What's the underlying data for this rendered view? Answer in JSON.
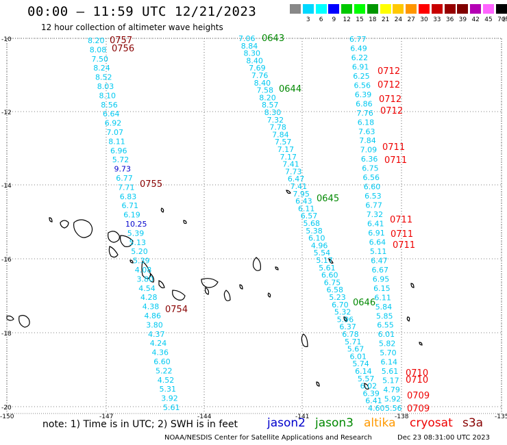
{
  "header": {
    "title": "00:00 – 11:59 UTC 12/21/2023",
    "subtitle": "12 hour collection of altimeter wave heights"
  },
  "legend": {
    "unit": "(ft)",
    "bins": [
      {
        "label": "",
        "color": "#888888"
      },
      {
        "label": "3",
        "color": "#00d8ff"
      },
      {
        "label": "6",
        "color": "#00ffff"
      },
      {
        "label": "9",
        "color": "#0000ff"
      },
      {
        "label": "12",
        "color": "#00c800"
      },
      {
        "label": "15",
        "color": "#00ff00"
      },
      {
        "label": "18",
        "color": "#009600"
      },
      {
        "label": "21",
        "color": "#ffff00"
      },
      {
        "label": "24",
        "color": "#ffc800"
      },
      {
        "label": "27",
        "color": "#ff9600"
      },
      {
        "label": "30",
        "color": "#ff0000"
      },
      {
        "label": "33",
        "color": "#c80000"
      },
      {
        "label": "36",
        "color": "#960000"
      },
      {
        "label": "39",
        "color": "#800000"
      },
      {
        "label": "42",
        "color": "#b400b4"
      },
      {
        "label": "45",
        "color": "#ff64ff"
      },
      {
        "label": "70",
        "color": "#000000"
      }
    ]
  },
  "axes": {
    "lat_labels": [
      "-10",
      "-12",
      "-14",
      "-16",
      "-18",
      "-20"
    ],
    "lon_labels": [
      "-150",
      "-147",
      "-144",
      "-141",
      "-138",
      "-135"
    ]
  },
  "tracks": {
    "track_a": [
      "8.20",
      "8.08",
      "7.50",
      "8.24",
      "8.52",
      "8.03",
      "8.10",
      "8.56",
      "6.64",
      "6.92",
      "7.07",
      "8.11",
      "6.96",
      "5.72",
      "9.73",
      "6.77",
      "7.71",
      "6.83",
      "6.71",
      "6.19",
      "10.25",
      "5.39",
      "5.13",
      "5.20",
      "5.39",
      "4.08",
      "3.80",
      "4.54",
      "4.28",
      "4.38",
      "4.86",
      "3.80",
      "4.37",
      "4.24",
      "4.36",
      "6.60",
      "5.22",
      "4.52",
      "5.31",
      "3.92",
      "5.61"
    ],
    "track_b": [
      "7.06",
      "8.84",
      "8.30",
      "8.40",
      "7.69",
      "7.76",
      "8.40",
      "7.58",
      "8.20",
      "8.57",
      "8.30",
      "7.32",
      "7.78",
      "7.84",
      "7.57",
      "7.17",
      "7.17",
      "7.41",
      "7.73",
      "6.47",
      "7.41",
      "7.95",
      "6.43",
      "6.11",
      "6.57",
      "5.68",
      "5.38",
      "6.10",
      "4.96",
      "5.54",
      "5.17",
      "5.61",
      "6.60",
      "6.75",
      "6.58",
      "5.23",
      "6.70",
      "5.32",
      "5.96",
      "6.37",
      "6.78",
      "5.71",
      "5.67",
      "6.01",
      "5.74",
      "6.14",
      "5.57",
      "6.02",
      "6.39",
      "6.41",
      "4.60"
    ],
    "track_c": [
      "6.77",
      "6.49",
      "6.22",
      "6.91",
      "6.25",
      "6.56",
      "6.39",
      "6.86",
      "7.76",
      "6.18",
      "7.63",
      "7.84",
      "7.09",
      "6.36",
      "6.75",
      "6.56",
      "6.60",
      "6.53",
      "6.77",
      "7.32",
      "6.41",
      "6.91",
      "6.64",
      "5.11",
      "6.47",
      "6.67",
      "6.95",
      "6.15",
      "6.11",
      "5.84",
      "5.85",
      "6.55",
      "6.01",
      "5.82",
      "5.70",
      "6.14",
      "5.61",
      "5.17",
      "4.79",
      "5.92",
      "5.56"
    ],
    "time_labels": {
      "track_a": [
        "0757",
        "0756",
        "0755",
        "0754"
      ],
      "track_b": [
        "0643",
        "0644",
        "0645",
        "0646"
      ],
      "track_c": [
        "0712",
        "0712",
        "0712",
        "0712",
        "0711",
        "0711",
        "0711",
        "0711",
        "0711",
        "0710",
        "0710",
        "0709",
        "0709"
      ]
    }
  },
  "footer": {
    "note": "note:  1) Time is in UTC; 2) SWH is in feet",
    "satellites": [
      {
        "name": "jason2",
        "color": "#0000cc"
      },
      {
        "name": "jason3",
        "color": "#008800"
      },
      {
        "name": "altika",
        "color": "#ff9900"
      },
      {
        "name": "cryosat",
        "color": "#ee0000"
      },
      {
        "name": "s3a",
        "color": "#880000"
      }
    ],
    "credit": "NOAA/NESDIS Center for Satellite Applications and Research",
    "timestamp": "Dec 23 08:31:00 UTC 2023"
  }
}
